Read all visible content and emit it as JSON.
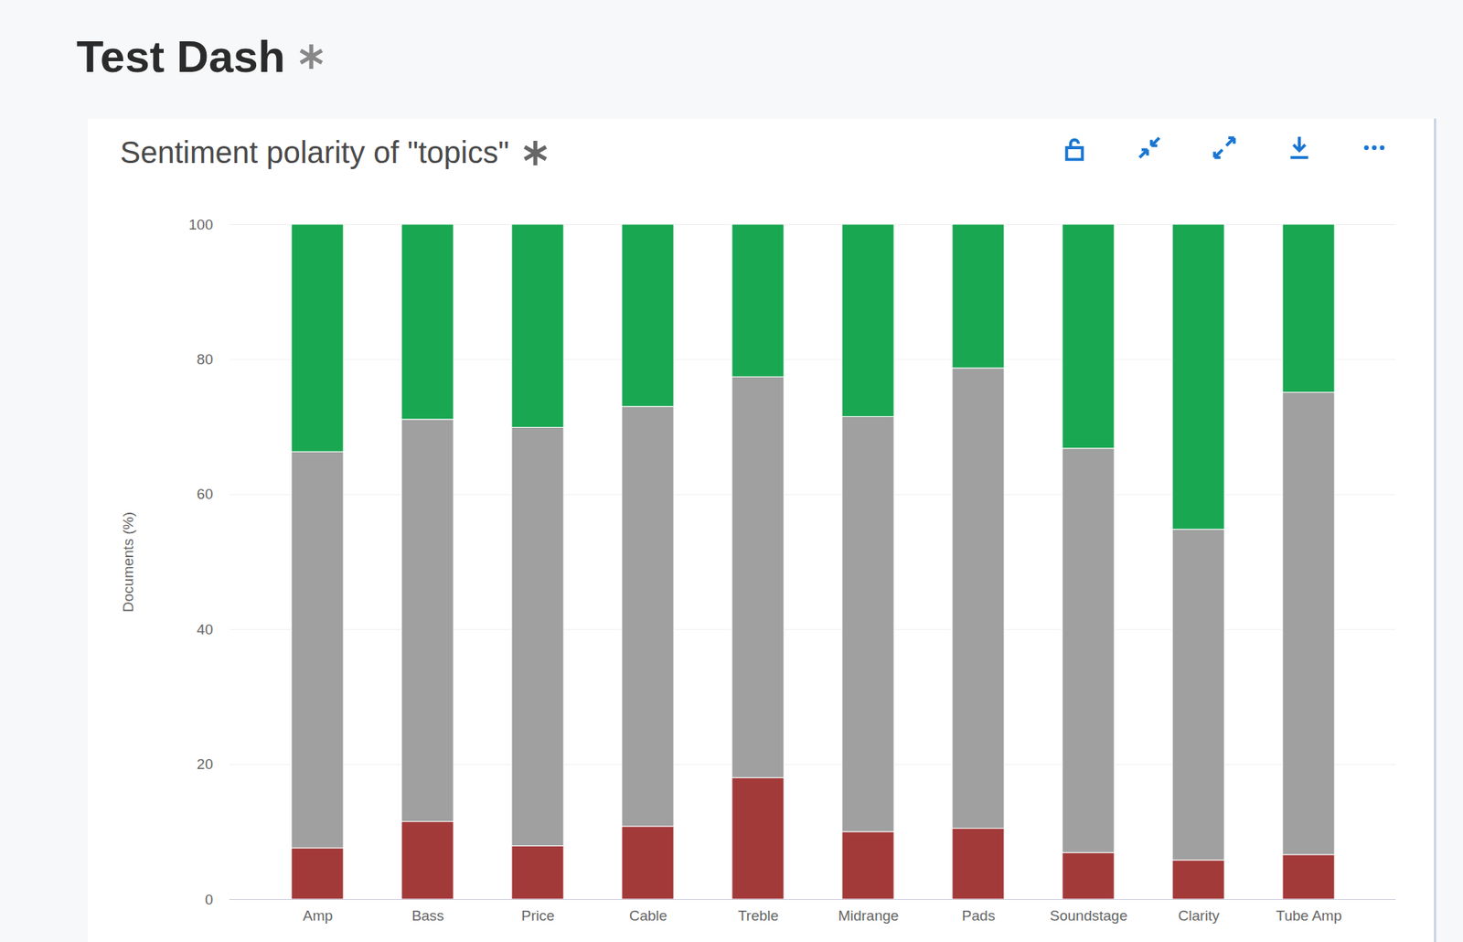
{
  "dashboard": {
    "title": "Test Dash"
  },
  "chart_data": {
    "type": "bar",
    "title": "Sentiment polarity of \"topics\"",
    "y_label": "Documents (%)",
    "categories": [
      "Amp",
      "Bass",
      "Price",
      "Cable",
      "Treble",
      "Midrange",
      "Pads",
      "Soundstage",
      "Clarity",
      "Tube Amp"
    ],
    "series": [
      {
        "color": "#a33a3a",
        "values": [
          7.6,
          11.5,
          7.9,
          10.8,
          18.0,
          10.0,
          10.5,
          6.9,
          5.8,
          6.6
        ]
      },
      {
        "color": "#a0a0a0",
        "values": [
          58.7,
          59.6,
          62.0,
          62.2,
          59.4,
          61.5,
          68.2,
          59.9,
          49.0,
          68.5
        ]
      },
      {
        "color": "#1aa752",
        "values": [
          33.7,
          28.9,
          30.1,
          27.0,
          22.6,
          28.5,
          21.3,
          33.2,
          45.2,
          24.9
        ]
      }
    ],
    "stacked": true,
    "ylim": [
      0,
      100
    ],
    "yticks": [
      0,
      20,
      40,
      60,
      80,
      100
    ],
    "grid": true
  }
}
